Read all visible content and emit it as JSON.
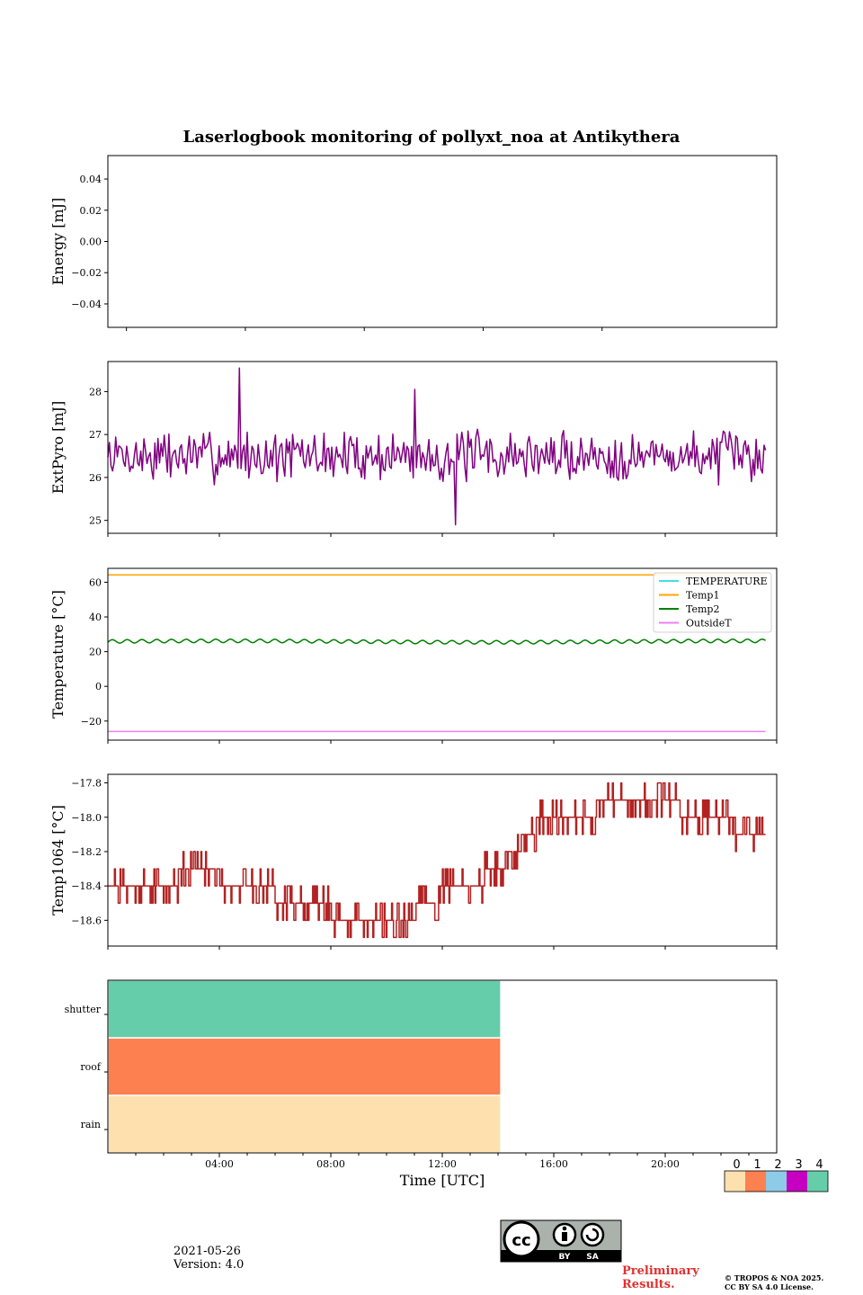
{
  "title": "Laserlogbook monitoring of pollyxt_noa at Antikythera",
  "xlabel": "Time [UTC]",
  "x_ticks": [
    "04:00",
    "08:00",
    "12:00",
    "16:00",
    "20:00"
  ],
  "footer": {
    "date": "2021-05-26",
    "version": "Version: 4.0",
    "license_badge": "CC BY SA",
    "preliminary_line1": "Preliminary",
    "preliminary_line2": "Results.",
    "copyright_line1": "© TROPOS & NOA 2025.",
    "copyright_line2": "CC BY SA 4.0 License."
  },
  "flag_colorbar": {
    "labels": [
      "0",
      "1",
      "2",
      "3",
      "4"
    ],
    "colors": [
      "#fde0ae",
      "#fd8050",
      "#8ecbe6",
      "#c600c0",
      "#66cdaa"
    ]
  },
  "chart_data": [
    {
      "type": "line",
      "ylabel": "Energy [mJ]",
      "ylim": [
        -0.055,
        0.055
      ],
      "yticks": [
        -0.04,
        -0.02,
        0.0,
        0.02,
        0.04
      ],
      "ytick_labels": [
        "−0.04",
        "−0.02",
        "0.00",
        "0.02",
        "0.04"
      ],
      "series": []
    },
    {
      "type": "line",
      "ylabel": "ExtPyro [mJ]",
      "xlim_hours": [
        0.5,
        24.5
      ],
      "ylim": [
        24.7,
        28.7
      ],
      "yticks": [
        25,
        26,
        27,
        28
      ],
      "ytick_labels": [
        "25",
        "26",
        "27",
        "28"
      ],
      "series": [
        {
          "color": "#800080",
          "x_start_hour": 0.5,
          "x_end_hour": 24.1,
          "mean": 26.5,
          "spread": 0.45,
          "spikes": [
            [
              5.2,
              28.55
            ],
            [
              11.5,
              28.05
            ],
            [
              13.0,
              24.9
            ]
          ]
        }
      ]
    },
    {
      "type": "line",
      "ylabel": "Temperature [°C]",
      "xlim_hours": [
        0.5,
        24.5
      ],
      "ylim": [
        -31,
        68
      ],
      "yticks": [
        -20,
        0,
        20,
        40,
        60
      ],
      "ytick_labels": [
        "−20",
        "0",
        "20",
        "40",
        "60"
      ],
      "legend_position": "top-right",
      "series": [
        {
          "name": "TEMPERATURE",
          "color": "#40e0e0",
          "values": []
        },
        {
          "name": "Temp1",
          "color": "#ffa500",
          "x": [
            0.5,
            24.1
          ],
          "values": [
            64.2,
            64.2
          ]
        },
        {
          "name": "Temp2",
          "color": "#008000",
          "x_start_hour": 0.5,
          "x_end_hour": 24.1,
          "mean": 25.8,
          "amplitude": 1.0,
          "period_hours": 0.53
        },
        {
          "name": "OutsideT",
          "color": "#ee82ee",
          "x": [
            0.5,
            24.1
          ],
          "values": [
            -26.0,
            -26.0
          ]
        }
      ]
    },
    {
      "type": "line",
      "ylabel": "Temp1064 [°C]",
      "xlim_hours": [
        0.5,
        24.5
      ],
      "ylim": [
        -18.75,
        -17.75
      ],
      "yticks": [
        -18.6,
        -18.4,
        -18.2,
        -18.0,
        -17.8
      ],
      "ytick_labels": [
        "−18.6",
        "−18.4",
        "−18.2",
        "−18.0",
        "−17.8"
      ],
      "series": [
        {
          "color": "#b22222",
          "x": [
            0.5,
            2.0,
            3.0,
            4.5,
            5.5,
            6.5,
            7.5,
            8.5,
            9.5,
            10.5,
            11.5,
            12.5,
            13.5,
            14.5,
            15.0,
            15.5,
            16.5,
            18.0,
            19.5,
            21.0,
            22.0,
            23.0,
            23.5,
            24.1
          ],
          "values": [
            -18.4,
            -18.4,
            -18.35,
            -18.35,
            -18.45,
            -18.45,
            -18.5,
            -18.55,
            -18.6,
            -18.6,
            -18.55,
            -18.45,
            -18.4,
            -18.3,
            -18.2,
            -18.1,
            -18.0,
            -17.95,
            -17.95,
            -17.95,
            -18.0,
            -18.05,
            -18.15,
            -18.15
          ]
        }
      ]
    },
    {
      "type": "heatmap",
      "xlim_hours": [
        0,
        24
      ],
      "rows": [
        "rain",
        "roof",
        "shutter"
      ],
      "segments": [
        {
          "row": "rain",
          "x0_hour": 0,
          "x1_hour": 14.1,
          "flag": 0
        },
        {
          "row": "roof",
          "x0_hour": 0,
          "x1_hour": 14.1,
          "flag": 1
        },
        {
          "row": "shutter",
          "x0_hour": 0,
          "x1_hour": 14.1,
          "flag": 4
        }
      ]
    }
  ]
}
